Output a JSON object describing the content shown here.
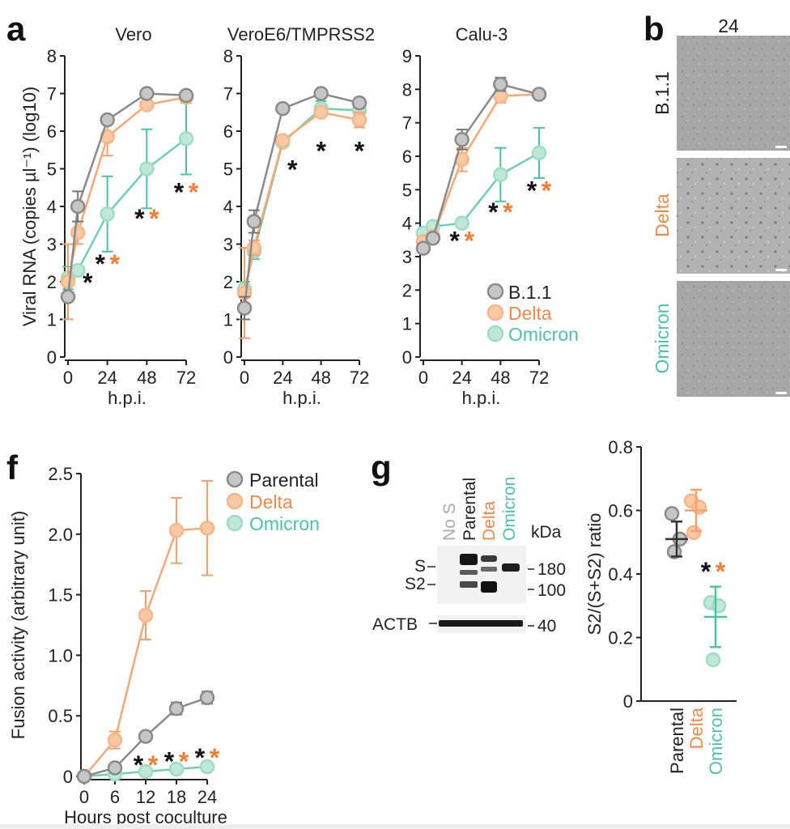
{
  "colors": {
    "b11": "#8a8a8a",
    "b11_fill": "#c6c6c6",
    "delta": "#f08a4b",
    "delta_fill": "#f9c9a4",
    "omicron": "#4fc29f",
    "omicron_fill": "#bfe8d8",
    "axis": "#222222",
    "sig_black": "#111111",
    "sig_orange": "#f07e33"
  },
  "panel_labels": {
    "a": "a",
    "b": "b",
    "f": "f",
    "g": "g"
  },
  "chart_data": [
    {
      "id": "a1",
      "type": "line",
      "title": "Vero",
      "ylabel": "Viral RNA (copies µl⁻¹) (log10)",
      "xlabel": "h.p.i.",
      "x": [
        0,
        6,
        24,
        48,
        72
      ],
      "xticks": [
        0,
        24,
        48,
        72
      ],
      "ylim": [
        0,
        8
      ],
      "yticks": [
        0,
        1,
        2,
        3,
        4,
        5,
        6,
        7,
        8
      ],
      "series": [
        {
          "name": "B.1.1",
          "color": "b11",
          "values": [
            1.6,
            4.0,
            6.3,
            7.0,
            6.95
          ],
          "err": [
            0,
            0.4,
            0,
            0,
            0.1
          ]
        },
        {
          "name": "Delta",
          "color": "delta",
          "values": [
            2.0,
            3.3,
            5.85,
            6.7,
            6.9
          ],
          "err": [
            1.0,
            0.3,
            0.5,
            0,
            0.15
          ]
        },
        {
          "name": "Omicron",
          "color": "omicron",
          "values": [
            2.1,
            2.3,
            3.8,
            5.0,
            5.8
          ],
          "err": [
            0.3,
            0.1,
            1.0,
            1.05,
            0.95
          ]
        }
      ],
      "annotations": [
        {
          "x": 12,
          "y": 2.0,
          "marks": [
            "*"
          ]
        },
        {
          "x": 24,
          "y": 2.5,
          "marks": [
            "*",
            "*"
          ]
        },
        {
          "x": 48,
          "y": 3.7,
          "marks": [
            "*",
            "*"
          ]
        },
        {
          "x": 72,
          "y": 4.4,
          "marks": [
            "*",
            "*"
          ]
        }
      ]
    },
    {
      "id": "a2",
      "type": "line",
      "title": "VeroE6/TMPRSS2",
      "ylabel": "",
      "xlabel": "h.p.i.",
      "x": [
        0,
        6,
        24,
        48,
        72
      ],
      "xticks": [
        0,
        24,
        48,
        72
      ],
      "ylim": [
        0,
        8
      ],
      "yticks": [
        0,
        1,
        2,
        3,
        4,
        5,
        6,
        7,
        8
      ],
      "series": [
        {
          "name": "B.1.1",
          "color": "b11",
          "values": [
            1.3,
            3.6,
            6.6,
            7.0,
            6.75
          ],
          "err": [
            0.3,
            0.3,
            0,
            0,
            0.1
          ]
        },
        {
          "name": "Delta",
          "color": "delta",
          "values": [
            1.7,
            2.9,
            5.75,
            6.5,
            6.3
          ],
          "err": [
            1.2,
            0.2,
            0,
            0.1,
            0.2
          ]
        },
        {
          "name": "Omicron",
          "color": "omicron",
          "values": [
            1.8,
            2.8,
            5.7,
            6.6,
            6.55
          ],
          "err": [
            0.2,
            0.2,
            0,
            0.2,
            0.2
          ]
        }
      ],
      "annotations": [
        {
          "x": 30,
          "y": 5.0,
          "marks": [
            "*"
          ]
        },
        {
          "x": 48,
          "y": 5.5,
          "marks": [
            "*"
          ]
        },
        {
          "x": 72,
          "y": 5.5,
          "marks": [
            "*"
          ]
        }
      ]
    },
    {
      "id": "a3",
      "type": "line",
      "title": "Calu-3",
      "ylabel": "",
      "xlabel": "h.p.i.",
      "x": [
        0,
        6,
        24,
        48,
        72
      ],
      "xticks": [
        0,
        24,
        48,
        72
      ],
      "ylim": [
        0,
        9
      ],
      "yticks": [
        0,
        1,
        2,
        3,
        4,
        5,
        6,
        7,
        8,
        9
      ],
      "series": [
        {
          "name": "B.1.1",
          "color": "b11",
          "values": [
            3.25,
            3.55,
            6.5,
            8.15,
            7.85
          ],
          "err": [
            0.1,
            0.1,
            0.3,
            0.2,
            0.1
          ]
        },
        {
          "name": "Delta",
          "color": "delta",
          "values": [
            3.45,
            3.6,
            5.9,
            7.8,
            7.85
          ],
          "err": [
            0.1,
            0.1,
            0.35,
            0.2,
            0.1
          ]
        },
        {
          "name": "Omicron",
          "color": "omicron",
          "values": [
            3.7,
            3.9,
            4.0,
            5.45,
            6.1
          ],
          "err": [
            0.15,
            0.1,
            0.1,
            0.8,
            0.75
          ]
        }
      ],
      "annotations": [
        {
          "x": 24,
          "y": 3.5,
          "marks": [
            "*",
            "*"
          ]
        },
        {
          "x": 48,
          "y": 4.35,
          "marks": [
            "*",
            "*"
          ]
        },
        {
          "x": 72,
          "y": 5.0,
          "marks": [
            "*",
            "*"
          ]
        }
      ]
    },
    {
      "id": "f",
      "type": "line",
      "title": "",
      "ylabel": "Fusion activity (arbitrary unit)",
      "xlabel": "Hours post coculture",
      "x": [
        0,
        6,
        12,
        18,
        24
      ],
      "xticks": [
        0,
        6,
        12,
        18,
        24
      ],
      "ylim": [
        0,
        2.5
      ],
      "yticks": [
        0,
        0.5,
        1.0,
        1.5,
        2.0,
        2.5
      ],
      "yticklabels": [
        "0",
        "0.5",
        "1.0",
        "1.5",
        "2.0",
        "2.5"
      ],
      "series": [
        {
          "name": "Parental",
          "color": "b11",
          "values": [
            0,
            0.07,
            0.33,
            0.56,
            0.65
          ],
          "err": [
            0,
            0,
            0,
            0.05,
            0.05
          ]
        },
        {
          "name": "Delta",
          "color": "delta",
          "values": [
            0,
            0.3,
            1.33,
            2.03,
            2.05
          ],
          "err": [
            0,
            0.07,
            0.2,
            0.27,
            0.39
          ]
        },
        {
          "name": "Omicron",
          "color": "omicron",
          "values": [
            0,
            0.02,
            0.04,
            0.06,
            0.08
          ],
          "err": [
            0,
            0,
            0,
            0,
            0
          ]
        }
      ],
      "annotations": [
        {
          "x": 12,
          "y": 0.1,
          "marks": [
            "*",
            "*"
          ]
        },
        {
          "x": 18,
          "y": 0.13,
          "marks": [
            "*",
            "*"
          ]
        },
        {
          "x": 24,
          "y": 0.16,
          "marks": [
            "*",
            "*"
          ]
        }
      ]
    },
    {
      "id": "g2",
      "type": "scatter",
      "title": "",
      "ylabel": "S2/(S+S2) ratio",
      "xlabel": "",
      "categories": [
        "Parental",
        "Delta",
        "Omicron"
      ],
      "ylim": [
        0,
        0.8
      ],
      "yticks": [
        0,
        0.2,
        0.4,
        0.6,
        0.8
      ],
      "yticklabels": [
        "0",
        "0.2",
        "0.4",
        "0.6",
        "0.8"
      ],
      "groups": [
        {
          "name": "Parental",
          "color": "b11",
          "points": [
            0.59,
            0.51,
            0.47
          ],
          "mean": 0.51,
          "sd": 0.055
        },
        {
          "name": "Delta",
          "color": "delta",
          "points": [
            0.63,
            0.61,
            0.53
          ],
          "mean": 0.6,
          "sd": 0.065
        },
        {
          "name": "Omicron",
          "color": "omicron",
          "points": [
            0.31,
            0.3,
            0.13
          ],
          "mean": 0.265,
          "sd": 0.095
        }
      ],
      "annotations": [
        {
          "x": "Delta",
          "y": 0.41,
          "marks": [
            "*",
            "*"
          ]
        }
      ]
    }
  ],
  "legend_a": [
    "B.1.1",
    "Delta",
    "Omicron"
  ],
  "legend_f": [
    "Parental",
    "Delta",
    "Omicron"
  ],
  "panel_b": {
    "column_header": "24",
    "rows": [
      "B.1.1",
      "Delta",
      "Omicron"
    ]
  },
  "blot": {
    "lanes": [
      "No S",
      "Parental",
      "Delta",
      "Omicron"
    ],
    "kda_label": "kDa",
    "band_labels": [
      "S",
      "S2",
      "ACTB"
    ],
    "markers": [
      "180",
      "100",
      "40"
    ]
  }
}
